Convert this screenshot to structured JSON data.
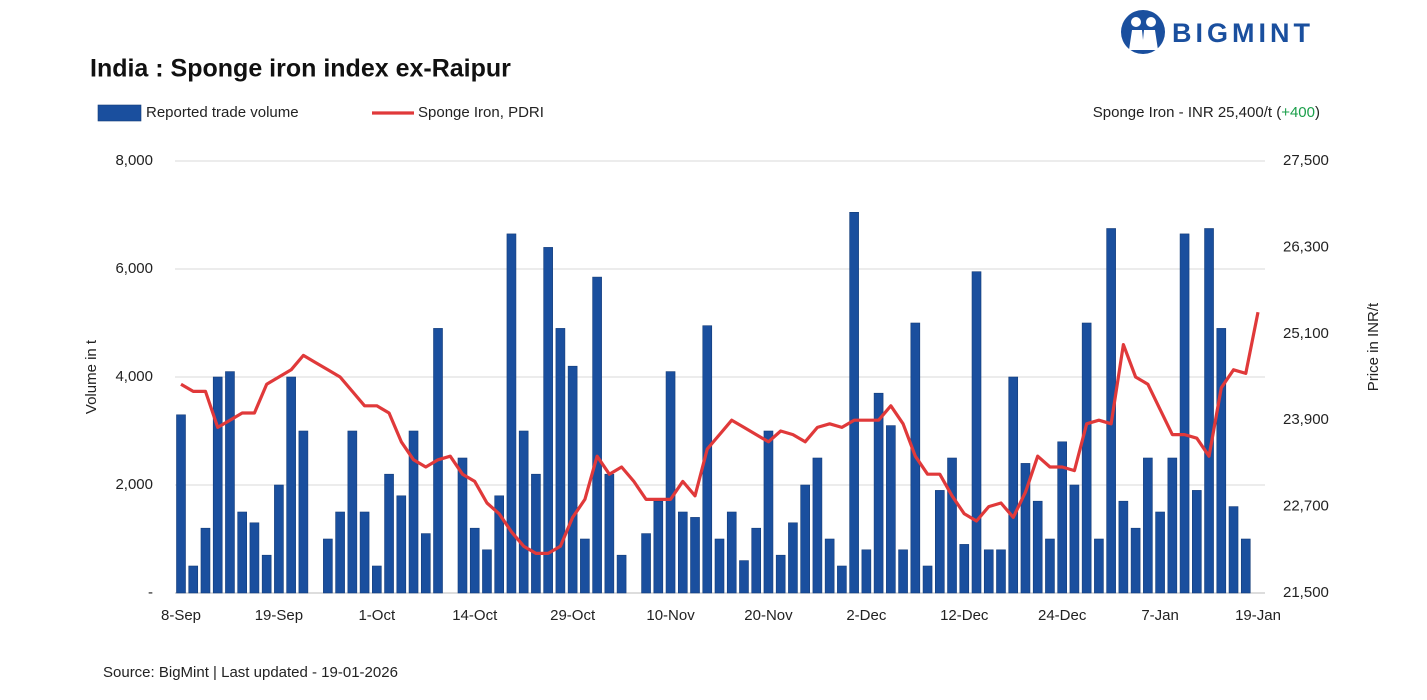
{
  "brand": "BIGMINT",
  "source": "Source: BigMint  |  Last updated - 19-01-2026",
  "chart_data": {
    "type": "bar_line",
    "title": "India : Sponge iron index ex-Raipur",
    "annotation": [
      "Sponge Iron - INR 25,400/t (",
      "+400",
      ")"
    ],
    "y_label": "Volume in t",
    "y2_label": "Price in INR/t",
    "grid": true,
    "categories": [
      "8-Sep",
      null,
      null,
      null,
      null,
      null,
      null,
      null,
      "19-Sep",
      null,
      null,
      null,
      null,
      null,
      null,
      null,
      "1-Oct",
      null,
      null,
      null,
      null,
      null,
      null,
      null,
      "14-Oct",
      null,
      null,
      null,
      null,
      null,
      null,
      null,
      "29-Oct",
      null,
      null,
      null,
      null,
      null,
      null,
      null,
      "10-Nov",
      null,
      null,
      null,
      null,
      null,
      null,
      null,
      "20-Nov",
      null,
      null,
      null,
      null,
      null,
      null,
      null,
      "2-Dec",
      null,
      null,
      null,
      null,
      null,
      null,
      null,
      "12-Dec",
      null,
      null,
      null,
      null,
      null,
      null,
      null,
      "24-Dec",
      null,
      null,
      null,
      null,
      null,
      null,
      null,
      "7-Jan",
      null,
      null,
      null,
      null,
      null,
      null,
      null,
      "19-Jan"
    ],
    "series": [
      {
        "name": "Reported trade volume",
        "kind": "bar",
        "color": "#1a4f9e",
        "values": [
          3300,
          500,
          1200,
          4000,
          4100,
          1500,
          1300,
          700,
          2000,
          4000,
          3000,
          null,
          1000,
          1500,
          3000,
          1500,
          500,
          2200,
          1800,
          3000,
          1100,
          4900,
          null,
          2500,
          1200,
          800,
          1800,
          6650,
          3000,
          2200,
          6400,
          4900,
          4200,
          1000,
          5850,
          2200,
          700,
          null,
          1100,
          1700,
          4100,
          1500,
          1400,
          4950,
          1000,
          1500,
          600,
          1200,
          3000,
          700,
          1300,
          2000,
          2500,
          1000,
          500,
          7050,
          800,
          3700,
          3100,
          800,
          5000,
          500,
          1900,
          2500,
          900,
          5950,
          800,
          800,
          4000,
          2400,
          1700,
          1000,
          2800,
          2000,
          5000,
          1000,
          6750,
          1700,
          1200,
          2500,
          1500,
          2500,
          6650,
          1900,
          6750,
          4900,
          1600,
          1000,
          null
        ]
      },
      {
        "name": "Sponge Iron, PDRI",
        "kind": "line",
        "axis": "y2",
        "color": "#e0393a",
        "values": [
          24400,
          24300,
          24300,
          23800,
          23900,
          24000,
          24000,
          24400,
          24500,
          24600,
          24800,
          24700,
          24600,
          24500,
          24300,
          24100,
          24100,
          24000,
          23600,
          23350,
          23250,
          23350,
          23400,
          23150,
          23050,
          22750,
          22600,
          22350,
          22150,
          22050,
          22050,
          22150,
          22550,
          22800,
          23400,
          23150,
          23250,
          23050,
          22800,
          22800,
          22800,
          23050,
          22850,
          23500,
          23700,
          23900,
          23800,
          23700,
          23600,
          23750,
          23700,
          23600,
          23800,
          23850,
          23800,
          23900,
          23900,
          23900,
          24100,
          23850,
          23400,
          23150,
          23150,
          22850,
          22600,
          22500,
          22700,
          22750,
          22550,
          22900,
          23400,
          23250,
          23250,
          23200,
          23850,
          23900,
          23850,
          24950,
          24500,
          24400,
          24050,
          23700,
          23700,
          23650,
          23400,
          24350,
          24600,
          24550,
          25400
        ]
      }
    ],
    "ylim": [
      0,
      8000
    ],
    "yticks": [
      {
        "value": 0,
        "label": "-"
      },
      {
        "value": 2000,
        "label": "2,000"
      },
      {
        "value": 4000,
        "label": "4,000"
      },
      {
        "value": 6000,
        "label": "6,000"
      },
      {
        "value": 8000,
        "label": "8,000"
      }
    ],
    "y2lim": [
      21500,
      27500
    ],
    "y2ticks": [
      {
        "value": 21500,
        "label": "21,500"
      },
      {
        "value": 22700,
        "label": "22,700"
      },
      {
        "value": 23900,
        "label": "23,900"
      },
      {
        "value": 25100,
        "label": "25,100"
      },
      {
        "value": 26300,
        "label": "26,300"
      },
      {
        "value": 27500,
        "label": "27,500"
      }
    ]
  }
}
